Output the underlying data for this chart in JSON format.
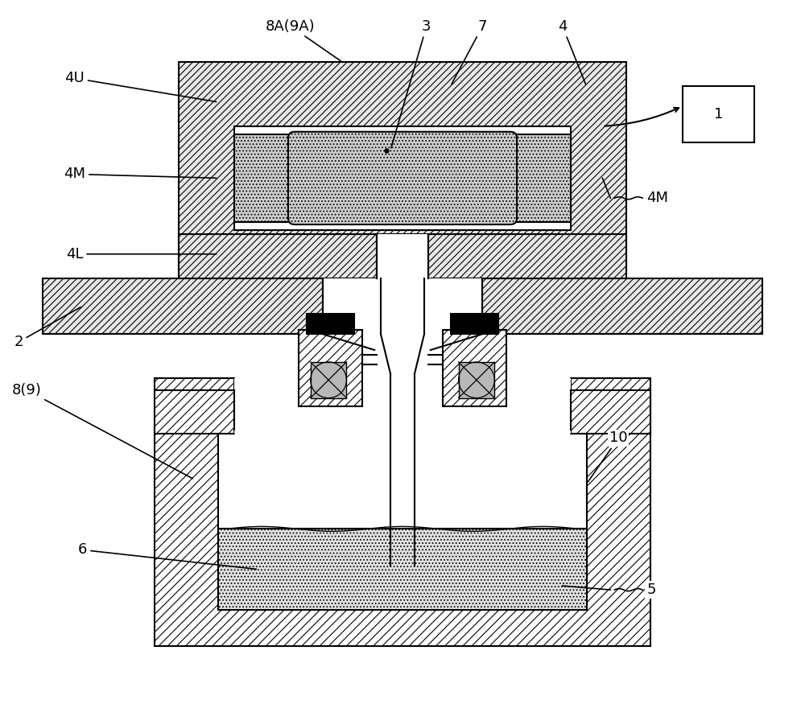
{
  "bg_color": "#ffffff",
  "lw_main": 1.5,
  "lw_thin": 0.8,
  "fs": 13,
  "hatch_dense": "////",
  "hatch_med": "///",
  "hatch_dot": "....",
  "colors": {
    "hatch_bg": "#e8e8e8",
    "white": "#ffffff",
    "black": "#000000",
    "gray_valve": "#b0b0b0",
    "melt_bg": "#e8e8e8"
  },
  "labels_top": {
    "8A9A": "8A(9A)",
    "3": "3",
    "7": "7",
    "4": "4"
  },
  "labels_left": {
    "4U": "4U",
    "4M": "4M",
    "4L": "4L",
    "2": "2",
    "89": "8(9)",
    "6": "6"
  },
  "labels_right": {
    "1": "1",
    "4M": "4M",
    "10": "10",
    "5": "5"
  }
}
